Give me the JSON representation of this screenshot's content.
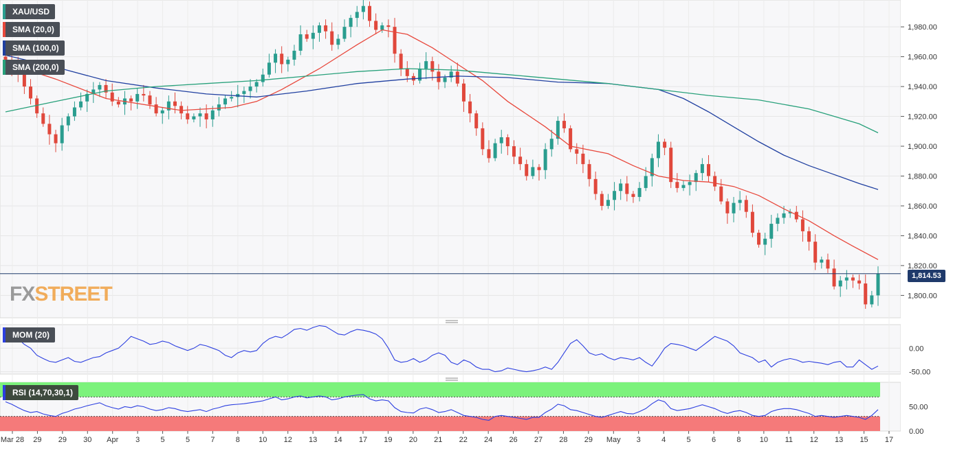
{
  "colors": {
    "up": "#2a9d8f",
    "down": "#e0483c",
    "sma20": "#e8473b",
    "sma100": "#1f3fa0",
    "sma200": "#27a07a",
    "mom_line": "#2c3fe0",
    "rsi_line": "#2c3fe0",
    "overbought_zone": "#7cf27c",
    "oversold_zone": "#f57a7a",
    "price_line": "#1f3a6b",
    "grid": "#e6e6e6",
    "panel_bg": "#f7f7f9"
  },
  "legend": {
    "symbol": "XAU/USD",
    "sma20": "SMA (20,0)",
    "sma100": "SMA (100,0)",
    "sma200": "SMA (200,0)",
    "mom": "MOM (20)",
    "rsi": "RSI (14,70,30,1)"
  },
  "logo": {
    "part1": "FX",
    "part2": "STREET"
  },
  "last_price_label": "1,814.53",
  "chart_data": [
    {
      "type": "candlestick",
      "panel": "price",
      "title": "XAU/USD",
      "ylim": [
        1785,
        1998
      ],
      "y_ticks": [
        1800,
        1820,
        1840,
        1860,
        1880,
        1900,
        1920,
        1940,
        1960,
        1980
      ],
      "y_tick_labels": [
        "1,800.00",
        "1,820.00",
        "1,840.00",
        "1,860.00",
        "1,880.00",
        "1,900.00",
        "1,920.00",
        "1,940.00",
        "1,960.00",
        "1,980.00"
      ],
      "x_tick_labels": [
        "Mar 28",
        "29",
        "29",
        "30",
        "Apr",
        "3",
        "5",
        "5",
        "7",
        "8",
        "10",
        "12",
        "13",
        "14",
        "17",
        "19",
        "20",
        "21",
        "22",
        "24",
        "26",
        "27",
        "28",
        "29",
        "May",
        "3",
        "4",
        "5",
        "6",
        "8",
        "10",
        "11",
        "12",
        "13",
        "15",
        "17"
      ],
      "last_price": 1814.53,
      "candle_anchors": [
        1958,
        1954,
        1949,
        1940,
        1932,
        1922,
        1915,
        1908,
        1902,
        1914,
        1920,
        1926,
        1930,
        1935,
        1938,
        1941,
        1936,
        1930,
        1928,
        1932,
        1930,
        1935,
        1934,
        1928,
        1922,
        1924,
        1930,
        1927,
        1922,
        1918,
        1920,
        1922,
        1918,
        1924,
        1928,
        1932,
        1933,
        1935,
        1937,
        1940,
        1943,
        1948,
        1956,
        1962,
        1955,
        1958,
        1964,
        1975,
        1972,
        1976,
        1981,
        1977,
        1968,
        1972,
        1980,
        1986,
        1990,
        1994,
        1984,
        1978,
        1981,
        1980,
        1962,
        1952,
        1947,
        1944,
        1952,
        1957,
        1950,
        1943,
        1946,
        1950,
        1942,
        1930,
        1922,
        1912,
        1898,
        1892,
        1902,
        1906,
        1900,
        1893,
        1888,
        1880,
        1886,
        1884,
        1898,
        1905,
        1917,
        1912,
        1898,
        1895,
        1888,
        1878,
        1868,
        1860,
        1864,
        1870,
        1875,
        1868,
        1866,
        1872,
        1880,
        1892,
        1903,
        1899,
        1876,
        1872,
        1874,
        1876,
        1882,
        1888,
        1880,
        1873,
        1863,
        1855,
        1862,
        1864,
        1856,
        1842,
        1834,
        1838,
        1848,
        1852,
        1855,
        1856,
        1851,
        1843,
        1836,
        1822,
        1824,
        1818,
        1806,
        1810,
        1812,
        1810,
        1808,
        1794,
        1800,
        1814.5
      ],
      "series": [
        {
          "name": "SMA (20,0)",
          "points": [
            [
              0,
              1956
            ],
            [
              8,
              1945
            ],
            [
              16,
              1932
            ],
            [
              28,
              1924
            ],
            [
              36,
              1926
            ],
            [
              40,
              1930
            ],
            [
              44,
              1938
            ],
            [
              50,
              1952
            ],
            [
              56,
              1968
            ],
            [
              60,
              1978
            ],
            [
              64,
              1975
            ],
            [
              68,
              1966
            ],
            [
              72,
              1955
            ],
            [
              76,
              1944
            ],
            [
              80,
              1930
            ],
            [
              86,
              1913
            ],
            [
              90,
              1900
            ],
            [
              96,
              1895
            ],
            [
              100,
              1887
            ],
            [
              104,
              1880
            ],
            [
              108,
              1877
            ],
            [
              112,
              1876
            ],
            [
              116,
              1873
            ],
            [
              120,
              1867
            ],
            [
              124,
              1858
            ],
            [
              128,
              1850
            ],
            [
              132,
              1840
            ],
            [
              135,
              1833
            ],
            [
              139,
              1824
            ]
          ]
        },
        {
          "name": "SMA (100,0)",
          "points": [
            [
              0,
              1961
            ],
            [
              8,
              1953
            ],
            [
              16,
              1944
            ],
            [
              24,
              1939
            ],
            [
              32,
              1935
            ],
            [
              40,
              1933
            ],
            [
              48,
              1937
            ],
            [
              56,
              1942
            ],
            [
              64,
              1945
            ],
            [
              72,
              1947
            ],
            [
              80,
              1946
            ],
            [
              88,
              1943
            ],
            [
              96,
              1942
            ],
            [
              104,
              1938
            ],
            [
              108,
              1932
            ],
            [
              112,
              1923
            ],
            [
              116,
              1913
            ],
            [
              120,
              1903
            ],
            [
              124,
              1894
            ],
            [
              128,
              1887
            ],
            [
              132,
              1881
            ],
            [
              136,
              1875
            ],
            [
              139,
              1871
            ]
          ]
        },
        {
          "name": "SMA (200,0)",
          "points": [
            [
              0,
              1923
            ],
            [
              8,
              1930
            ],
            [
              16,
              1937
            ],
            [
              24,
              1940
            ],
            [
              32,
              1942
            ],
            [
              40,
              1944
            ],
            [
              48,
              1947
            ],
            [
              56,
              1950
            ],
            [
              64,
              1952
            ],
            [
              72,
              1951
            ],
            [
              80,
              1948
            ],
            [
              88,
              1945
            ],
            [
              96,
              1942
            ],
            [
              104,
              1938
            ],
            [
              112,
              1934
            ],
            [
              120,
              1931
            ],
            [
              128,
              1925
            ],
            [
              132,
              1920
            ],
            [
              136,
              1915
            ],
            [
              139,
              1909
            ]
          ]
        }
      ]
    },
    {
      "type": "line",
      "panel": "momentum",
      "title": "MOM (20)",
      "ylim": [
        -55,
        50
      ],
      "y_ticks": [
        0,
        -50
      ],
      "y_tick_labels": [
        "0.00",
        "-50.00"
      ],
      "values": [
        40,
        30,
        20,
        8,
        0,
        -15,
        -22,
        -28,
        -30,
        -25,
        -20,
        -28,
        -30,
        -25,
        -20,
        -18,
        -10,
        -5,
        0,
        12,
        25,
        20,
        15,
        8,
        10,
        15,
        12,
        5,
        0,
        -5,
        0,
        8,
        5,
        0,
        -5,
        -15,
        -20,
        -10,
        -5,
        -8,
        -5,
        10,
        20,
        25,
        22,
        30,
        40,
        42,
        38,
        44,
        48,
        46,
        38,
        30,
        28,
        35,
        40,
        38,
        35,
        30,
        20,
        0,
        -25,
        -30,
        -28,
        -22,
        -30,
        -25,
        -15,
        -10,
        -15,
        -30,
        -35,
        -25,
        -30,
        -40,
        -45,
        -45,
        -50,
        -48,
        -42,
        -45,
        -48,
        -50,
        -48,
        -45,
        -40,
        -45,
        -30,
        -10,
        10,
        18,
        5,
        -10,
        -15,
        -12,
        -20,
        -25,
        -20,
        -22,
        -25,
        -20,
        -30,
        -38,
        -20,
        0,
        10,
        8,
        5,
        0,
        -5,
        5,
        15,
        25,
        20,
        15,
        5,
        -10,
        -15,
        -20,
        -30,
        -25,
        -40,
        -30,
        -25,
        -22,
        -25,
        -30,
        -28,
        -30,
        -32,
        -35,
        -30,
        -28,
        -40,
        -40,
        -25,
        -35,
        -45,
        -38
      ]
    },
    {
      "type": "line",
      "panel": "rsi",
      "title": "RSI (14,70,30,1)",
      "ylim": [
        0,
        100
      ],
      "y_ticks": [
        0,
        50
      ],
      "y_tick_labels": [
        "0.00",
        "50.00"
      ],
      "overbought": 70,
      "oversold": 30,
      "values": [
        60,
        55,
        48,
        42,
        38,
        40,
        35,
        32,
        30,
        36,
        40,
        45,
        48,
        52,
        55,
        58,
        52,
        48,
        45,
        50,
        48,
        52,
        50,
        45,
        42,
        44,
        48,
        46,
        42,
        40,
        42,
        44,
        40,
        45,
        48,
        52,
        54,
        55,
        56,
        58,
        60,
        62,
        66,
        70,
        64,
        66,
        70,
        72,
        68,
        70,
        72,
        70,
        64,
        66,
        70,
        72,
        74,
        75,
        66,
        62,
        64,
        62,
        48,
        40,
        38,
        37,
        45,
        48,
        44,
        38,
        40,
        44,
        38,
        32,
        30,
        28,
        24,
        22,
        30,
        32,
        30,
        28,
        26,
        24,
        28,
        28,
        38,
        45,
        55,
        52,
        44,
        42,
        38,
        34,
        30,
        28,
        32,
        36,
        40,
        36,
        35,
        40,
        46,
        56,
        64,
        60,
        46,
        42,
        44,
        46,
        50,
        54,
        50,
        46,
        40,
        36,
        40,
        42,
        38,
        32,
        30,
        32,
        40,
        44,
        46,
        46,
        44,
        40,
        36,
        30,
        32,
        30,
        28,
        30,
        32,
        30,
        28,
        24,
        32,
        44
      ]
    }
  ]
}
